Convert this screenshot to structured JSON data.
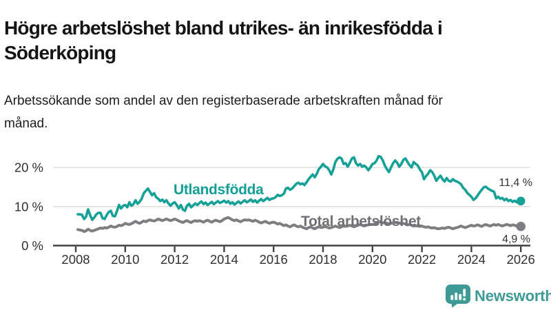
{
  "header": {
    "title": "Högre arbetslöshet bland utrikes- än inrikesfödda i Söderköping",
    "subtitle": "Arbetssökande som andel av den registerbaserade arbetskraften månad för månad."
  },
  "footer": {
    "brand": "Newsworthy",
    "logo_icon": "bar-chart-speech-bubble-icon"
  },
  "colors": {
    "teal": "#15a195",
    "gray": "#7e7e82",
    "gridline": "#d9d9d9",
    "axis": "#404040",
    "tick_text": "#303030",
    "logo_teal": "#3d9a95",
    "value_label_text": "#333333"
  },
  "chart_data": {
    "type": "line",
    "title": "Högre arbetslöshet bland utrikes- än inrikesfödda i Söderköping",
    "subtitle": "Arbetssökande som andel av den registerbaserade arbetskraften månad för månad.",
    "x_unit": "year, monthly resolution",
    "x_start": 2008.0833,
    "x_step": 0.0833,
    "xlim": [
      2007.1,
      2026.4
    ],
    "ylim": [
      0,
      23.5
    ],
    "grid": "horizontal",
    "legend_position": "inline-labels",
    "x_ticks": [
      2008,
      2010,
      2012,
      2014,
      2016,
      2018,
      2020,
      2022,
      2024,
      2026
    ],
    "y_ticks": [
      {
        "value": 0,
        "label": "0 %"
      },
      {
        "value": 10,
        "label": "10 %"
      },
      {
        "value": 20,
        "label": "20 %"
      }
    ],
    "series": [
      {
        "name": "Utlandsfödda",
        "color": "#15a195",
        "end_label": "11,4 %",
        "end_value": 11.4,
        "values": [
          8.0,
          8.0,
          7.9,
          6.8,
          7.4,
          9.3,
          7.8,
          6.6,
          7.2,
          8.0,
          8.4,
          8.4,
          7.0,
          6.8,
          7.8,
          8.6,
          8.9,
          7.6,
          7.5,
          8.8,
          10.4,
          9.5,
          10.2,
          10.4,
          9.8,
          11.1,
          10.2,
          10.6,
          11.6,
          10.7,
          11.2,
          12.0,
          13.4,
          14.0,
          14.6,
          13.8,
          12.9,
          13.4,
          12.4,
          12.0,
          11.4,
          11.8,
          11.1,
          11.6,
          10.8,
          10.2,
          10.8,
          11.1,
          10.4,
          9.5,
          10.4,
          9.2,
          8.9,
          10.2,
          10.7,
          9.8,
          10.3,
          10.8,
          10.4,
          10.9,
          11.3,
          10.6,
          11.0,
          10.4,
          10.8,
          11.2,
          10.6,
          11.0,
          11.4,
          10.9,
          11.2,
          11.5,
          11.0,
          11.4,
          10.7,
          11.1,
          10.5,
          10.9,
          11.3,
          10.8,
          11.2,
          11.6,
          11.1,
          11.4,
          11.8,
          11.2,
          11.6,
          11.0,
          11.5,
          11.9,
          11.4,
          11.8,
          12.2,
          11.7,
          12.0,
          12.1,
          12.4,
          13.0,
          12.7,
          12.9,
          13.3,
          14.6,
          14.8,
          14.3,
          14.6,
          15.2,
          15.8,
          16.1,
          15.7,
          15.9,
          15.5,
          16.2,
          17.0,
          17.6,
          18.2,
          17.5,
          18.4,
          19.6,
          20.2,
          20.9,
          20.3,
          20.0,
          19.3,
          18.2,
          19.5,
          21.4,
          22.2,
          22.6,
          22.3,
          20.9,
          21.1,
          20.2,
          21.2,
          22.3,
          22.6,
          21.1,
          20.5,
          20.9,
          20.2,
          20.5,
          20.0,
          19.3,
          20.0,
          20.9,
          21.1,
          21.8,
          22.9,
          22.7,
          21.8,
          20.5,
          19.6,
          18.8,
          20.0,
          21.1,
          21.8,
          21.2,
          20.2,
          20.9,
          22.0,
          22.3,
          21.4,
          20.6,
          20.0,
          21.4,
          20.9,
          20.5,
          19.5,
          18.8,
          17.0,
          17.8,
          18.4,
          19.3,
          18.8,
          17.9,
          16.6,
          17.3,
          17.9,
          17.0,
          16.4,
          17.3,
          16.6,
          16.4,
          17.0,
          16.6,
          16.4,
          16.1,
          15.7,
          14.8,
          14.3,
          13.5,
          13.0,
          12.5,
          11.7,
          12.1,
          12.8,
          13.6,
          14.3,
          14.9,
          15.1,
          14.6,
          14.3,
          14.0,
          13.8,
          12.1,
          12.5,
          12.0,
          12.2,
          11.6,
          12.0,
          11.4,
          11.7,
          11.2,
          11.5,
          11.1,
          11.3,
          11.4
        ]
      },
      {
        "name": "Total arbetslöshet",
        "color": "#7e7e82",
        "end_label": "4,9 %",
        "end_value": 4.9,
        "values": [
          4.1,
          4.0,
          3.9,
          3.6,
          3.8,
          4.2,
          3.9,
          3.7,
          3.9,
          4.1,
          4.3,
          4.5,
          4.4,
          4.6,
          4.5,
          4.7,
          5.0,
          4.8,
          4.7,
          4.9,
          5.2,
          5.1,
          5.3,
          5.7,
          5.5,
          5.4,
          5.6,
          5.9,
          6.2,
          5.9,
          5.7,
          6.0,
          6.3,
          6.1,
          6.4,
          6.6,
          6.4,
          6.3,
          6.5,
          6.8,
          6.6,
          6.4,
          6.6,
          6.8,
          6.6,
          6.4,
          6.6,
          6.8,
          6.6,
          6.3,
          6.1,
          5.9,
          6.2,
          6.4,
          6.1,
          5.9,
          6.2,
          6.4,
          6.2,
          6.4,
          6.2,
          6.0,
          6.3,
          6.5,
          6.2,
          6.0,
          6.3,
          6.5,
          6.3,
          6.1,
          6.4,
          6.8,
          7.0,
          7.2,
          6.9,
          6.6,
          6.4,
          6.6,
          6.3,
          6.1,
          6.4,
          6.6,
          6.5,
          6.6,
          6.4,
          6.2,
          6.5,
          6.3,
          6.0,
          5.8,
          6.0,
          6.2,
          5.9,
          5.7,
          5.9,
          6.0,
          5.8,
          5.5,
          5.7,
          5.4,
          5.1,
          5.3,
          5.0,
          4.8,
          5.1,
          5.3,
          5.0,
          4.8,
          5.0,
          4.7,
          4.5,
          4.3,
          4.6,
          4.8,
          4.5,
          4.3,
          4.6,
          4.8,
          4.6,
          4.7,
          4.9,
          4.7,
          4.5,
          4.6,
          4.8,
          5.0,
          4.8,
          4.6,
          4.8,
          5.0,
          4.9,
          5.0,
          5.2,
          5.0,
          4.8,
          5.0,
          5.2,
          5.4,
          5.2,
          5.0,
          5.2,
          5.3,
          5.4,
          5.4,
          5.5,
          5.8,
          6.2,
          6.0,
          5.8,
          5.9,
          5.7,
          5.6,
          5.7,
          5.8,
          5.9,
          5.9,
          5.8,
          5.6,
          5.7,
          5.5,
          5.3,
          5.4,
          5.2,
          5.0,
          5.1,
          5.0,
          4.9,
          5.0,
          4.8,
          4.7,
          4.8,
          4.6,
          4.5,
          4.6,
          4.4,
          4.3,
          4.4,
          4.5,
          4.4,
          4.6,
          4.7,
          4.5,
          4.3,
          4.5,
          4.6,
          4.8,
          5.0,
          4.8,
          4.6,
          4.8,
          5.0,
          5.2,
          5.0,
          5.1,
          5.3,
          5.1,
          4.9,
          5.2,
          5.4,
          5.2,
          5.0,
          5.2,
          5.4,
          5.2,
          5.4,
          5.2,
          5.0,
          5.2,
          5.4,
          5.3,
          5.1,
          5.3,
          5.2,
          5.0,
          4.8,
          4.9
        ]
      }
    ]
  }
}
